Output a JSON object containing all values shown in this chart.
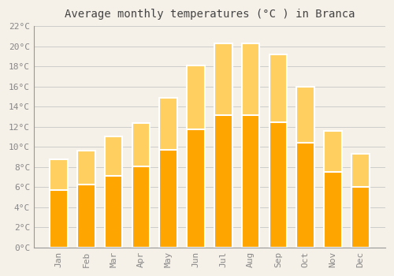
{
  "title": "Average monthly temperatures (°C ) in Branca",
  "months": [
    "Jan",
    "Feb",
    "Mar",
    "Apr",
    "May",
    "Jun",
    "Jul",
    "Aug",
    "Sep",
    "Oct",
    "Nov",
    "Dec"
  ],
  "values": [
    8.8,
    9.6,
    11.0,
    12.4,
    14.9,
    18.1,
    20.3,
    20.3,
    19.2,
    16.0,
    11.6,
    9.3
  ],
  "bar_color": "#FFA500",
  "bar_color_top": "#FFD060",
  "background_color": "#f5f0e8",
  "plot_bg_color": "#f5f0e8",
  "grid_color": "#cccccc",
  "tick_label_color": "#888888",
  "title_color": "#444444",
  "border_color": "#999999",
  "ylim": [
    0,
    22
  ],
  "ytick_step": 2,
  "title_fontsize": 10,
  "tick_fontsize": 8,
  "figsize": [
    5.0,
    3.5
  ],
  "dpi": 100
}
